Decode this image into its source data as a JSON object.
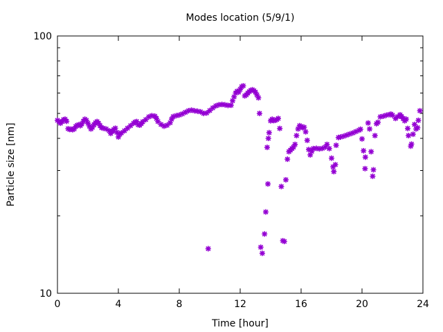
{
  "chart_data": {
    "type": "scatter",
    "title": "Modes location (5/9/1)",
    "xlabel": "Time [hour]",
    "ylabel": "Particle size [nm]",
    "xlim": [
      0,
      24
    ],
    "ylim": [
      10,
      100
    ],
    "yscale": "log",
    "xticks": [
      0,
      4,
      8,
      12,
      16,
      20,
      24
    ],
    "yticks": [
      10,
      100
    ],
    "xtick_labels": [
      "0",
      "4",
      "8",
      "12",
      "16",
      "20",
      "24"
    ],
    "ytick_labels": [
      "10",
      "100"
    ],
    "grid": false,
    "legend": "none",
    "marker_color": "#9400d3",
    "series": [
      {
        "name": "modes",
        "points": [
          [
            0.0,
            47.0
          ],
          [
            0.1,
            46.5
          ],
          [
            0.2,
            45.8
          ],
          [
            0.3,
            46.5
          ],
          [
            0.4,
            47.3
          ],
          [
            0.5,
            47.5
          ],
          [
            0.6,
            46.6
          ],
          [
            0.7,
            43.6
          ],
          [
            0.8,
            43.3
          ],
          [
            0.9,
            43.4
          ],
          [
            1.0,
            43.2
          ],
          [
            1.1,
            43.5
          ],
          [
            1.2,
            44.5
          ],
          [
            1.3,
            45.0
          ],
          [
            1.4,
            45.2
          ],
          [
            1.5,
            44.8
          ],
          [
            1.6,
            45.5
          ],
          [
            1.7,
            46.6
          ],
          [
            1.8,
            47.5
          ],
          [
            1.9,
            47.0
          ],
          [
            2.0,
            45.8
          ],
          [
            2.1,
            44.6
          ],
          [
            2.2,
            43.5
          ],
          [
            2.3,
            44.2
          ],
          [
            2.4,
            45.2
          ],
          [
            2.5,
            46.0
          ],
          [
            2.6,
            46.5
          ],
          [
            2.7,
            45.8
          ],
          [
            2.8,
            44.8
          ],
          [
            2.9,
            44.0
          ],
          [
            3.0,
            43.8
          ],
          [
            3.2,
            43.5
          ],
          [
            3.4,
            42.8
          ],
          [
            3.5,
            41.8
          ],
          [
            3.6,
            42.6
          ],
          [
            3.7,
            43.3
          ],
          [
            3.8,
            43.8
          ],
          [
            3.9,
            42.2
          ],
          [
            4.0,
            40.5
          ],
          [
            4.1,
            41.5
          ],
          [
            4.2,
            42.0
          ],
          [
            4.4,
            42.8
          ],
          [
            4.6,
            43.8
          ],
          [
            4.8,
            44.8
          ],
          [
            5.0,
            45.8
          ],
          [
            5.1,
            46.3
          ],
          [
            5.2,
            46.5
          ],
          [
            5.3,
            45.2
          ],
          [
            5.4,
            45.0
          ],
          [
            5.5,
            45.6
          ],
          [
            5.6,
            46.4
          ],
          [
            5.8,
            47.3
          ],
          [
            6.0,
            48.5
          ],
          [
            6.2,
            49.0
          ],
          [
            6.4,
            48.8
          ],
          [
            6.5,
            47.8
          ],
          [
            6.6,
            46.5
          ],
          [
            6.8,
            45.3
          ],
          [
            7.0,
            44.6
          ],
          [
            7.2,
            45.0
          ],
          [
            7.4,
            46.0
          ],
          [
            7.5,
            47.5
          ],
          [
            7.6,
            48.6
          ],
          [
            7.8,
            49.0
          ],
          [
            8.0,
            49.3
          ],
          [
            8.2,
            49.8
          ],
          [
            8.4,
            50.5
          ],
          [
            8.6,
            51.2
          ],
          [
            8.8,
            51.5
          ],
          [
            9.0,
            51.2
          ],
          [
            9.2,
            51.0
          ],
          [
            9.4,
            50.7
          ],
          [
            9.6,
            50.0
          ],
          [
            9.8,
            50.2
          ],
          [
            9.9,
            14.9
          ],
          [
            10.0,
            51.3
          ],
          [
            10.2,
            52.5
          ],
          [
            10.4,
            53.5
          ],
          [
            10.6,
            54.0
          ],
          [
            10.8,
            54.2
          ],
          [
            11.0,
            54.0
          ],
          [
            11.2,
            53.7
          ],
          [
            11.4,
            53.8
          ],
          [
            11.5,
            56.0
          ],
          [
            11.6,
            58.0
          ],
          [
            11.7,
            60.0
          ],
          [
            11.8,
            61.0
          ],
          [
            11.9,
            60.5
          ],
          [
            12.0,
            62.0
          ],
          [
            12.1,
            63.5
          ],
          [
            12.2,
            64.0
          ],
          [
            12.3,
            58.5
          ],
          [
            12.4,
            59.0
          ],
          [
            12.5,
            60.0
          ],
          [
            12.6,
            60.8
          ],
          [
            12.7,
            61.5
          ],
          [
            12.8,
            61.8
          ],
          [
            12.9,
            61.3
          ],
          [
            13.0,
            60.5
          ],
          [
            13.1,
            59.0
          ],
          [
            13.2,
            57.5
          ],
          [
            13.27,
            50.0
          ],
          [
            13.35,
            15.1
          ],
          [
            13.45,
            14.3
          ],
          [
            13.6,
            17.0
          ],
          [
            13.68,
            20.7
          ],
          [
            13.82,
            26.6
          ],
          [
            13.77,
            36.9
          ],
          [
            13.85,
            40.0
          ],
          [
            13.9,
            42.1
          ],
          [
            14.0,
            46.8
          ],
          [
            14.1,
            47.5
          ],
          [
            14.2,
            46.9
          ],
          [
            14.3,
            47.0
          ],
          [
            14.4,
            47.3
          ],
          [
            14.5,
            47.8
          ],
          [
            14.6,
            43.7
          ],
          [
            14.7,
            26.0
          ],
          [
            14.8,
            16.0
          ],
          [
            14.9,
            15.9
          ],
          [
            15.0,
            27.6
          ],
          [
            15.1,
            33.2
          ],
          [
            15.2,
            35.5
          ],
          [
            15.3,
            36.0
          ],
          [
            15.4,
            36.5
          ],
          [
            15.5,
            37.0
          ],
          [
            15.6,
            37.9
          ],
          [
            15.7,
            41.0
          ],
          [
            15.8,
            43.5
          ],
          [
            15.9,
            44.8
          ],
          [
            16.0,
            44.5
          ],
          [
            16.1,
            44.0
          ],
          [
            16.2,
            44.2
          ],
          [
            16.3,
            42.4
          ],
          [
            16.4,
            39.3
          ],
          [
            16.5,
            36.2
          ],
          [
            16.6,
            34.5
          ],
          [
            16.7,
            35.6
          ],
          [
            16.8,
            36.5
          ],
          [
            17.0,
            36.6
          ],
          [
            17.2,
            36.4
          ],
          [
            17.4,
            36.6
          ],
          [
            17.6,
            37.0
          ],
          [
            17.7,
            37.9
          ],
          [
            17.85,
            36.5
          ],
          [
            18.0,
            33.5
          ],
          [
            18.1,
            31.0
          ],
          [
            18.15,
            29.7
          ],
          [
            18.25,
            31.6
          ],
          [
            18.3,
            37.6
          ],
          [
            18.45,
            40.3
          ],
          [
            18.6,
            40.5
          ],
          [
            18.8,
            40.8
          ],
          [
            19.0,
            41.2
          ],
          [
            19.2,
            41.6
          ],
          [
            19.4,
            42.0
          ],
          [
            19.6,
            42.5
          ],
          [
            19.8,
            43.0
          ],
          [
            19.9,
            43.4
          ],
          [
            20.0,
            39.8
          ],
          [
            20.1,
            35.8
          ],
          [
            20.2,
            30.5
          ],
          [
            20.22,
            33.8
          ],
          [
            20.4,
            45.9
          ],
          [
            20.5,
            43.5
          ],
          [
            20.6,
            35.5
          ],
          [
            20.7,
            28.5
          ],
          [
            20.75,
            30.2
          ],
          [
            20.85,
            41.0
          ],
          [
            20.95,
            45.6
          ],
          [
            21.05,
            46.2
          ],
          [
            21.2,
            48.5
          ],
          [
            21.4,
            48.8
          ],
          [
            21.6,
            49.2
          ],
          [
            21.8,
            49.5
          ],
          [
            21.9,
            49.7
          ],
          [
            22.0,
            49.2
          ],
          [
            22.2,
            47.8
          ],
          [
            22.35,
            48.6
          ],
          [
            22.5,
            49.4
          ],
          [
            22.6,
            48.6
          ],
          [
            22.7,
            47.8
          ],
          [
            22.8,
            46.8
          ],
          [
            22.9,
            47.5
          ],
          [
            23.0,
            43.7
          ],
          [
            23.05,
            41.0
          ],
          [
            23.2,
            37.3
          ],
          [
            23.25,
            38.0
          ],
          [
            23.35,
            41.5
          ],
          [
            23.45,
            45.3
          ],
          [
            23.55,
            43.5
          ],
          [
            23.65,
            44.0
          ],
          [
            23.7,
            47.0
          ],
          [
            23.8,
            51.2
          ]
        ]
      }
    ]
  }
}
